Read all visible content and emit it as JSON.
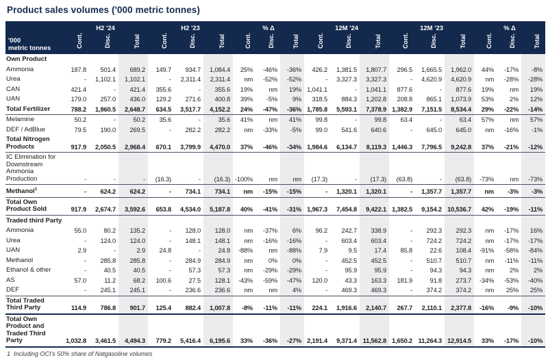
{
  "title": "Product sales volumes ('000 metric tonnes)",
  "colors": {
    "navy": "#14294e",
    "shade": "#ececef",
    "rule": "#4a5064"
  },
  "table": {
    "corner_line1": "'000",
    "corner_line2": "metric tonnes",
    "groups": [
      "H2 '24",
      "H2 '23",
      "% Δ",
      "12M '24",
      "12M '23",
      "% Δ"
    ],
    "subcolumns": [
      "Cont.",
      "Disc.",
      "Total"
    ],
    "shaded_value_columns": [
      2,
      5,
      8,
      11,
      14,
      17
    ],
    "rows": [
      {
        "label": "Own Product",
        "type": "section",
        "rule": "",
        "values": [
          "",
          "",
          "",
          "",
          "",
          "",
          "",
          "",
          "",
          "",
          "",
          "",
          "",
          "",
          "",
          "",
          "",
          ""
        ]
      },
      {
        "label": "Ammonia",
        "type": "data",
        "rule": "",
        "values": [
          "187.8",
          "501.4",
          "689.2",
          "149.7",
          "934.7",
          "1,084.4",
          "25%",
          "-46%",
          "-36%",
          "426.2",
          "1,381.5",
          "1,807.7",
          "296.5",
          "1,665.5",
          "1,962.0",
          "44%",
          "-17%",
          "-8%"
        ]
      },
      {
        "label": "Urea",
        "type": "data",
        "rule": "",
        "values": [
          "-",
          "1,102.1",
          "1,102.1",
          "-",
          "2,311.4",
          "2,311.4",
          "nm",
          "-52%",
          "-52%",
          "-",
          "3,327.3",
          "3,327.3",
          "-",
          "4,620.9",
          "4,620.9",
          "nm",
          "-28%",
          "-28%"
        ]
      },
      {
        "label": "CAN",
        "type": "data",
        "rule": "",
        "values": [
          "421.4",
          "-",
          "421.4",
          "355.6",
          "-",
          "355.6",
          "19%",
          "nm",
          "19%",
          "1,041.1",
          "-",
          "1,041.1",
          "877.6",
          "-",
          "877.6",
          "19%",
          "nm",
          "19%"
        ]
      },
      {
        "label": "UAN",
        "type": "data",
        "rule": "",
        "values": [
          "179.0",
          "257.0",
          "436.0",
          "129.2",
          "271.6",
          "400.8",
          "39%",
          "-5%",
          "9%",
          "318.5",
          "884.3",
          "1,202.8",
          "208.8",
          "865.1",
          "1,073.9",
          "53%",
          "2%",
          "12%"
        ]
      },
      {
        "label": "Total Fertilizer",
        "type": "total",
        "rule": "thin",
        "values": [
          "788.2",
          "1,860.5",
          "2,648.7",
          "634.5",
          "3,517.7",
          "4,152.2",
          "24%",
          "-47%",
          "-36%",
          "1,785.8",
          "5,593.1",
          "7,378.9",
          "1,382.9",
          "7,151.5",
          "8,534.4",
          "29%",
          "-22%",
          "-14%"
        ]
      },
      {
        "label": "Melamine",
        "type": "data",
        "rule": "",
        "values": [
          "50.2",
          "-",
          "50.2",
          "35.6",
          "-",
          "35.6",
          "41%",
          "nm",
          "41%",
          "99.8",
          "-",
          "99.8",
          "63.4",
          "-",
          "63.4",
          "57%",
          "nm",
          "57%"
        ]
      },
      {
        "label": "DEF / AdBlue",
        "type": "data",
        "rule": "",
        "values": [
          "79.5",
          "190.0",
          "269.5",
          "-",
          "282.2",
          "282.2",
          "nm",
          "-33%",
          "-5%",
          "99.0",
          "541.6",
          "640.6",
          "-",
          "645.0",
          "645.0",
          "nm",
          "-16%",
          "-1%"
        ]
      },
      {
        "label": "Total Nitrogen Products",
        "type": "total",
        "rule": "thin",
        "values": [
          "917.9",
          "2,050.5",
          "2,968.4",
          "670.1",
          "3,799.9",
          "4,470.0",
          "37%",
          "-46%",
          "-34%",
          "1,984.6",
          "6,134.7",
          "8,119.3",
          "1,446.3",
          "7,796.5",
          "9,242.8",
          "37%",
          "-21%",
          "-12%"
        ]
      },
      {
        "label": "IC Elimination for Downstream Ammonia Production",
        "type": "data",
        "rule": "thin",
        "values": [
          "-",
          "-",
          "-",
          "(16.3)",
          "-",
          "(16.3)",
          "-100%",
          "nm",
          "nm",
          "(17.3)",
          "-",
          "(17.3)",
          "(63.8)",
          "-",
          "(63.8)",
          "-73%",
          "nm",
          "-73%"
        ]
      },
      {
        "label": "Methanol",
        "sup": "1",
        "type": "total",
        "rule": "thin",
        "values": [
          "-",
          "624.2",
          "624.2",
          "-",
          "734.1",
          "734.1",
          "nm",
          "-15%",
          "-15%",
          "-",
          "1,320.1",
          "1,320.1",
          "-",
          "1,357.7",
          "1,357.7",
          "nm",
          "-3%",
          "-3%"
        ]
      },
      {
        "label": "Total Own Product Sold",
        "type": "total",
        "rule": "thin",
        "values": [
          "917.9",
          "2,674.7",
          "3,592.6",
          "653.8",
          "4,534.0",
          "5,187.8",
          "40%",
          "-41%",
          "-31%",
          "1,967.3",
          "7,454.8",
          "9,422.1",
          "1,382.5",
          "9,154.2",
          "10,536.7",
          "42%",
          "-19%",
          "-11%"
        ]
      },
      {
        "label": "Traded third Party",
        "type": "section",
        "rule": "",
        "values": [
          "",
          "",
          "",
          "",
          "",
          "",
          "",
          "",
          "",
          "",
          "",
          "",
          "",
          "",
          "",
          "",
          "",
          ""
        ]
      },
      {
        "label": "Ammonia",
        "type": "data",
        "rule": "",
        "values": [
          "55.0",
          "80.2",
          "135.2",
          "-",
          "128.0",
          "128.0",
          "nm",
          "-37%",
          "6%",
          "96.2",
          "242.7",
          "338.9",
          "-",
          "292.3",
          "292.3",
          "nm",
          "-17%",
          "16%"
        ]
      },
      {
        "label": "Urea",
        "type": "data",
        "rule": "",
        "values": [
          "-",
          "124.0",
          "124.0",
          "-",
          "148.1",
          "148.1",
          "nm",
          "-16%",
          "-16%",
          "-",
          "603.4",
          "603.4",
          "-",
          "724.2",
          "724.2",
          "nm",
          "-17%",
          "-17%"
        ]
      },
      {
        "label": "UAN",
        "type": "data",
        "rule": "",
        "values": [
          "2.9",
          "-",
          "2.9",
          "24.8",
          "-",
          "24.8",
          "-88%",
          "nm",
          "-88%",
          "7.9",
          "9.5",
          "17.4",
          "85.8",
          "22.6",
          "108.4",
          "-91%",
          "-58%",
          "-84%"
        ]
      },
      {
        "label": "Methanol",
        "type": "data",
        "rule": "",
        "values": [
          "-",
          "285.8",
          "285.8",
          "-",
          "284.9",
          "284.9",
          "nm",
          "0%",
          "0%",
          "-",
          "452.5",
          "452.5",
          "-",
          "510.7",
          "510.7",
          "nm",
          "-11%",
          "-11%"
        ]
      },
      {
        "label": "Ethanol & other",
        "type": "data",
        "rule": "",
        "values": [
          "-",
          "40.5",
          "40.5",
          "-",
          "57.3",
          "57.3",
          "nm",
          "-29%",
          "-29%",
          "-",
          "95.9",
          "95.9",
          "-",
          "94.3",
          "94.3",
          "nm",
          "2%",
          "2%"
        ]
      },
      {
        "label": "AS",
        "type": "data",
        "rule": "",
        "values": [
          "57.0",
          "11.2",
          "68.2",
          "100.6",
          "27.5",
          "128.1",
          "-43%",
          "-59%",
          "-47%",
          "120.0",
          "43.3",
          "163.3",
          "181.9",
          "91.8",
          "273.7",
          "-34%",
          "-53%",
          "-40%"
        ]
      },
      {
        "label": "DEF",
        "type": "data",
        "rule": "thin",
        "values": [
          "-",
          "245.1",
          "245.1",
          "-",
          "236.6",
          "236.6",
          "nm",
          "nm",
          "4%",
          "-",
          "469.3",
          "469.3",
          "-",
          "374.2",
          "374.2",
          "nm",
          "25%",
          "25%"
        ]
      },
      {
        "label": "Total Traded Third Party",
        "type": "total",
        "rule": "thick",
        "values": [
          "114.9",
          "786.8",
          "901.7",
          "125.4",
          "882.4",
          "1,007.8",
          "-8%",
          "-11%",
          "-11%",
          "224.1",
          "1,916.6",
          "2,140.7",
          "267.7",
          "2,110.1",
          "2,377.8",
          "-16%",
          "-9%",
          "-10%"
        ]
      },
      {
        "label": "Total Own Product and Traded Third Party",
        "type": "total",
        "rule": "thick",
        "values": [
          "1,032.8",
          "3,461.5",
          "4,494.3",
          "779.2",
          "5,416.4",
          "6,195.6",
          "33%",
          "-36%",
          "-27%",
          "2,191.4",
          "9,371.4",
          "11,562.8",
          "1,650.2",
          "11,264.3",
          "12,914.5",
          "33%",
          "-17%",
          "-10%"
        ]
      }
    ]
  },
  "footnote": {
    "marker": "1",
    "text": "Including OCI's 50% share of Natgasoline volumes"
  }
}
